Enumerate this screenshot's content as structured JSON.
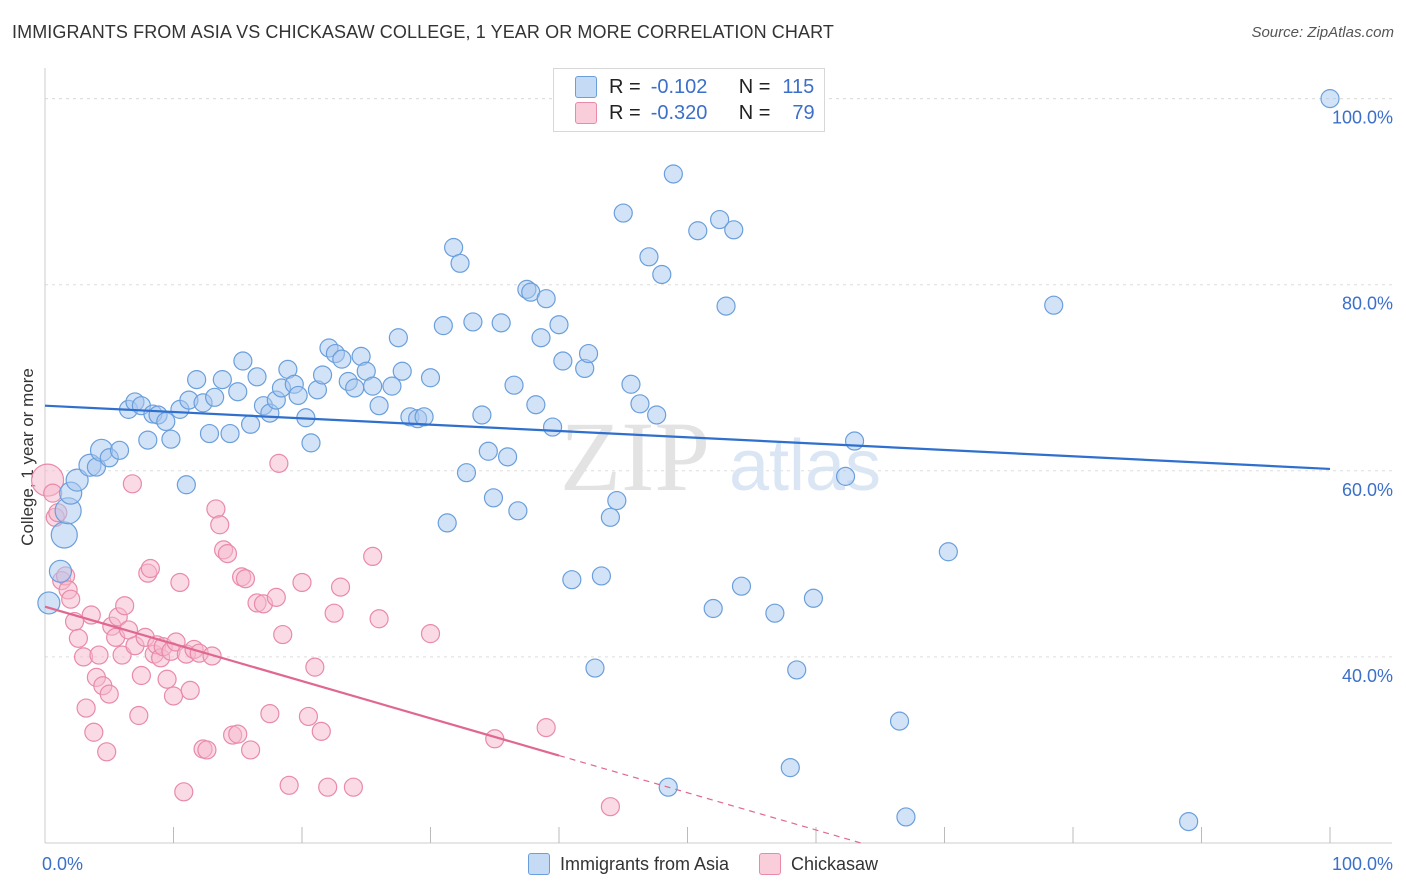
{
  "header": {
    "title": "IMMIGRANTS FROM ASIA VS CHICKASAW COLLEGE, 1 YEAR OR MORE CORRELATION CHART",
    "source": "Source: ZipAtlas.com"
  },
  "watermark": {
    "zip": "ZIP",
    "atlas": "atlas"
  },
  "legend_top": [
    {
      "r_label": "R =",
      "r_value": "-0.102",
      "n_label": "N =",
      "n_value": "115"
    },
    {
      "r_label": "R =",
      "r_value": "-0.320",
      "n_label": "N =",
      "n_value": "79"
    }
  ],
  "legend_bottom": [
    {
      "label": "Immigrants from Asia"
    },
    {
      "label": "Chickasaw"
    }
  ],
  "colors": {
    "blue_fill": "#a8c8f0",
    "blue_stroke": "#6a9fdc",
    "blue_line": "#2f6fcd",
    "pink_fill": "#f6b8cb",
    "pink_stroke": "#e98aa8",
    "pink_line": "#e06890",
    "tick_label": "#3b6fc9",
    "grid": "#dddddd"
  },
  "chart_data": {
    "type": "scatter",
    "title": "IMMIGRANTS FROM ASIA VS CHICKASAW COLLEGE, 1 YEAR OR MORE CORRELATION CHART",
    "ylabel": "College, 1 year or more",
    "xlabel": "",
    "xlim": [
      0,
      100
    ],
    "ylim": [
      20,
      102
    ],
    "x_ticks": [
      {
        "value": 0,
        "label": "0.0%"
      },
      {
        "value": 100,
        "label": "100.0%"
      }
    ],
    "x_minor_ticks": [
      10,
      20,
      30,
      40,
      50,
      60,
      70,
      80,
      90,
      100
    ],
    "y_ticks": [
      {
        "value": 40,
        "label": "40.0%"
      },
      {
        "value": 60,
        "label": "60.0%"
      },
      {
        "value": 80,
        "label": "80.0%"
      },
      {
        "value": 100,
        "label": "100.0%"
      }
    ],
    "grid": true,
    "legend_position": "bottom",
    "series": [
      {
        "name": "Immigrants from Asia",
        "r": -0.102,
        "n": 115,
        "trend": {
          "x0": 0,
          "y0": 67.0,
          "x1": 100,
          "y1": 60.2,
          "dashed_from": null
        },
        "points": [
          [
            0.3,
            45.8,
            11
          ],
          [
            1.2,
            49.2,
            11
          ],
          [
            1.5,
            53.1,
            13
          ],
          [
            1.8,
            55.7,
            13
          ],
          [
            2.0,
            57.6,
            11
          ],
          [
            2.5,
            59.0,
            11
          ],
          [
            3.5,
            60.6,
            11
          ],
          [
            4.0,
            60.4,
            9
          ],
          [
            4.4,
            62.2,
            11
          ],
          [
            5.0,
            61.4,
            9
          ],
          [
            5.8,
            62.2,
            9
          ],
          [
            6.5,
            66.6,
            9
          ],
          [
            7.0,
            67.4,
            9
          ],
          [
            7.5,
            67.0,
            9
          ],
          [
            8.0,
            63.3,
            9
          ],
          [
            8.4,
            66.1,
            9
          ],
          [
            8.8,
            66.0,
            9
          ],
          [
            9.4,
            65.3,
            9
          ],
          [
            9.8,
            63.4,
            9
          ],
          [
            10.5,
            66.6,
            9
          ],
          [
            11.0,
            58.5,
            9
          ],
          [
            11.2,
            67.6,
            9
          ],
          [
            11.8,
            69.8,
            9
          ],
          [
            12.3,
            67.3,
            9
          ],
          [
            12.8,
            64.0,
            9
          ],
          [
            13.2,
            67.9,
            9
          ],
          [
            13.8,
            69.8,
            9
          ],
          [
            14.4,
            64.0,
            9
          ],
          [
            15.0,
            68.5,
            9
          ],
          [
            15.4,
            71.8,
            9
          ],
          [
            16.0,
            65.0,
            9
          ],
          [
            16.5,
            70.1,
            9
          ],
          [
            17.0,
            67.0,
            9
          ],
          [
            17.5,
            66.2,
            9
          ],
          [
            18.0,
            67.6,
            9
          ],
          [
            18.4,
            68.9,
            9
          ],
          [
            18.9,
            70.9,
            9
          ],
          [
            19.4,
            69.3,
            9
          ],
          [
            19.7,
            68.1,
            9
          ],
          [
            20.3,
            65.7,
            9
          ],
          [
            20.7,
            63.0,
            9
          ],
          [
            21.2,
            68.7,
            9
          ],
          [
            21.6,
            70.3,
            9
          ],
          [
            22.1,
            73.2,
            9
          ],
          [
            22.6,
            72.6,
            9
          ],
          [
            23.1,
            72.0,
            9
          ],
          [
            23.6,
            69.6,
            9
          ],
          [
            24.1,
            68.9,
            9
          ],
          [
            24.6,
            72.3,
            9
          ],
          [
            25.0,
            70.7,
            9
          ],
          [
            25.5,
            69.1,
            9
          ],
          [
            26.0,
            67.0,
            9
          ],
          [
            27.0,
            69.1,
            9
          ],
          [
            27.5,
            74.3,
            9
          ],
          [
            27.8,
            70.7,
            9
          ],
          [
            28.4,
            65.8,
            9
          ],
          [
            29.0,
            65.6,
            9
          ],
          [
            29.5,
            65.8,
            9
          ],
          [
            30.0,
            70.0,
            9
          ],
          [
            31.0,
            75.6,
            9
          ],
          [
            31.3,
            54.4,
            9
          ],
          [
            31.8,
            84.0,
            9
          ],
          [
            32.3,
            82.3,
            9
          ],
          [
            32.8,
            59.8,
            9
          ],
          [
            33.3,
            76.0,
            9
          ],
          [
            34.0,
            66.0,
            9
          ],
          [
            34.5,
            62.1,
            9
          ],
          [
            34.9,
            57.1,
            9
          ],
          [
            35.5,
            75.9,
            9
          ],
          [
            36.0,
            61.5,
            9
          ],
          [
            36.5,
            69.2,
            9
          ],
          [
            36.8,
            55.7,
            9
          ],
          [
            37.5,
            79.5,
            9
          ],
          [
            37.8,
            79.2,
            9
          ],
          [
            38.2,
            67.1,
            9
          ],
          [
            38.6,
            74.3,
            9
          ],
          [
            39.0,
            78.5,
            9
          ],
          [
            39.5,
            64.7,
            9
          ],
          [
            40.0,
            75.7,
            9
          ],
          [
            40.3,
            71.8,
            9
          ],
          [
            41.0,
            48.3,
            9
          ],
          [
            42.0,
            71.0,
            9
          ],
          [
            42.3,
            72.6,
            9
          ],
          [
            42.8,
            38.8,
            9
          ],
          [
            43.3,
            48.7,
            9
          ],
          [
            44.0,
            55.0,
            9
          ],
          [
            44.5,
            56.8,
            9
          ],
          [
            45.0,
            87.7,
            9
          ],
          [
            45.6,
            69.3,
            9
          ],
          [
            46.3,
            67.2,
            9
          ],
          [
            47.0,
            83.0,
            9
          ],
          [
            47.6,
            66.0,
            9
          ],
          [
            48.0,
            81.1,
            9
          ],
          [
            48.5,
            26.0,
            9
          ],
          [
            48.9,
            91.9,
            9
          ],
          [
            50.8,
            85.8,
            9
          ],
          [
            52.0,
            45.2,
            9
          ],
          [
            52.5,
            87.0,
            9
          ],
          [
            53.0,
            77.7,
            9
          ],
          [
            53.6,
            85.9,
            9
          ],
          [
            54.2,
            47.6,
            9
          ],
          [
            56.8,
            44.7,
            9
          ],
          [
            58.0,
            28.1,
            9
          ],
          [
            58.5,
            38.6,
            9
          ],
          [
            59.8,
            46.3,
            9
          ],
          [
            62.3,
            59.4,
            9
          ],
          [
            63.0,
            63.2,
            9
          ],
          [
            66.5,
            33.1,
            9
          ],
          [
            67.0,
            22.8,
            9
          ],
          [
            70.3,
            51.3,
            9
          ],
          [
            78.5,
            77.8,
            9
          ],
          [
            89.0,
            22.3,
            9
          ],
          [
            100.0,
            100.0,
            9
          ]
        ]
      },
      {
        "name": "Chickasaw",
        "r": -0.32,
        "n": 79,
        "trend": {
          "x0": 0,
          "y0": 45.4,
          "x1": 63.5,
          "y1": 20.0,
          "dashed_from": 40
        },
        "points": [
          [
            0.2,
            59.0,
            16
          ],
          [
            0.6,
            57.6,
            9
          ],
          [
            0.8,
            55.0,
            9
          ],
          [
            1.0,
            55.5,
            9
          ],
          [
            1.3,
            48.2,
            9
          ],
          [
            1.6,
            48.7,
            9
          ],
          [
            1.8,
            47.2,
            9
          ],
          [
            2.0,
            46.2,
            9
          ],
          [
            2.3,
            43.8,
            9
          ],
          [
            2.6,
            42.0,
            9
          ],
          [
            3.0,
            40.0,
            9
          ],
          [
            3.2,
            34.5,
            9
          ],
          [
            3.6,
            44.5,
            9
          ],
          [
            3.8,
            31.9,
            9
          ],
          [
            4.0,
            37.8,
            9
          ],
          [
            4.2,
            40.2,
            9
          ],
          [
            4.5,
            36.9,
            9
          ],
          [
            4.8,
            29.8,
            9
          ],
          [
            5.0,
            36.0,
            9
          ],
          [
            5.2,
            43.3,
            9
          ],
          [
            5.5,
            42.1,
            9
          ],
          [
            5.7,
            44.3,
            9
          ],
          [
            6.0,
            40.2,
            9
          ],
          [
            6.2,
            45.5,
            9
          ],
          [
            6.5,
            42.9,
            9
          ],
          [
            6.8,
            58.6,
            9
          ],
          [
            7.0,
            41.2,
            9
          ],
          [
            7.3,
            33.7,
            9
          ],
          [
            7.5,
            38.0,
            9
          ],
          [
            7.8,
            42.1,
            9
          ],
          [
            8.0,
            49.0,
            9
          ],
          [
            8.2,
            49.5,
            9
          ],
          [
            8.5,
            40.3,
            9
          ],
          [
            8.7,
            41.3,
            9
          ],
          [
            9.0,
            39.9,
            9
          ],
          [
            9.2,
            41.1,
            9
          ],
          [
            9.5,
            37.6,
            9
          ],
          [
            9.8,
            40.6,
            9
          ],
          [
            10.0,
            35.8,
            9
          ],
          [
            10.2,
            41.6,
            9
          ],
          [
            10.5,
            48.0,
            9
          ],
          [
            10.8,
            25.5,
            9
          ],
          [
            11.0,
            40.3,
            9
          ],
          [
            11.3,
            36.4,
            9
          ],
          [
            11.6,
            40.8,
            9
          ],
          [
            12.0,
            40.4,
            9
          ],
          [
            12.3,
            30.1,
            9
          ],
          [
            12.6,
            30.0,
            9
          ],
          [
            13.0,
            40.1,
            9
          ],
          [
            13.3,
            55.9,
            9
          ],
          [
            13.6,
            54.2,
            9
          ],
          [
            13.9,
            51.5,
            9
          ],
          [
            14.2,
            51.1,
            9
          ],
          [
            14.6,
            31.6,
            9
          ],
          [
            15.0,
            31.7,
            9
          ],
          [
            15.3,
            48.6,
            9
          ],
          [
            15.6,
            48.4,
            9
          ],
          [
            16.0,
            30.0,
            9
          ],
          [
            16.5,
            45.8,
            9
          ],
          [
            17.0,
            45.7,
            9
          ],
          [
            17.5,
            33.9,
            9
          ],
          [
            18.0,
            46.4,
            9
          ],
          [
            18.2,
            60.8,
            9
          ],
          [
            18.5,
            42.4,
            9
          ],
          [
            19.0,
            26.2,
            9
          ],
          [
            20.0,
            48.0,
            9
          ],
          [
            20.5,
            33.6,
            9
          ],
          [
            21.0,
            38.9,
            9
          ],
          [
            21.5,
            32.0,
            9
          ],
          [
            22.0,
            26.0,
            9
          ],
          [
            22.5,
            44.7,
            9
          ],
          [
            23.0,
            47.5,
            9
          ],
          [
            24.0,
            26.0,
            9
          ],
          [
            25.5,
            50.8,
            9
          ],
          [
            26.0,
            44.1,
            9
          ],
          [
            30.0,
            42.5,
            9
          ],
          [
            35.0,
            31.2,
            9
          ],
          [
            39.0,
            32.4,
            9
          ],
          [
            44.0,
            23.9,
            9
          ]
        ]
      }
    ]
  }
}
